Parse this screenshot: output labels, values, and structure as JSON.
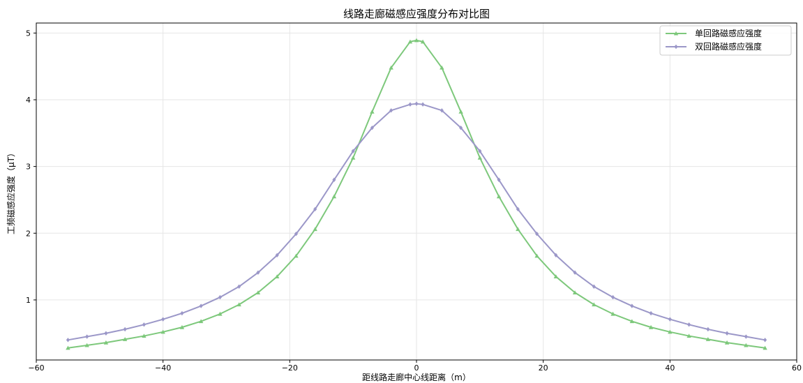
{
  "chart_data": {
    "type": "line",
    "title": "线路走廊磁感应强度分布对比图",
    "xlabel": "距线路走廊中心线距离（m）",
    "ylabel": "工频磁感应强度（μT）",
    "xlim": [
      -60,
      60
    ],
    "ylim": [
      0.1,
      5.15
    ],
    "xticks": [
      -60,
      -40,
      -20,
      0,
      20,
      40,
      60
    ],
    "yticks": [
      1,
      2,
      3,
      4,
      5
    ],
    "grid": true,
    "legend_position": "top-right",
    "series": [
      {
        "name": "单回路磁感应强度",
        "color": "#7dc87b",
        "marker": "triangle",
        "x": [
          -55,
          -52,
          -49,
          -46,
          -43,
          -40,
          -37,
          -34,
          -31,
          -28,
          -25,
          -22,
          -19,
          -16,
          -13,
          -10,
          -7,
          -4,
          -1,
          0,
          1,
          4,
          7,
          10,
          13,
          16,
          19,
          22,
          25,
          28,
          31,
          34,
          37,
          40,
          43,
          46,
          49,
          52,
          55
        ],
        "y": [
          0.28,
          0.32,
          0.36,
          0.41,
          0.46,
          0.52,
          0.59,
          0.68,
          0.79,
          0.93,
          1.11,
          1.35,
          1.66,
          2.06,
          2.55,
          3.13,
          3.82,
          4.48,
          4.87,
          4.89,
          4.87,
          4.48,
          3.82,
          3.13,
          2.55,
          2.06,
          1.66,
          1.35,
          1.11,
          0.93,
          0.79,
          0.68,
          0.59,
          0.52,
          0.46,
          0.41,
          0.36,
          0.32,
          0.28
        ]
      },
      {
        "name": "双回路磁感应强度",
        "color": "#9b97c8",
        "marker": "diamond",
        "x": [
          -55,
          -52,
          -49,
          -46,
          -43,
          -40,
          -37,
          -34,
          -31,
          -28,
          -25,
          -22,
          -19,
          -16,
          -13,
          -10,
          -7,
          -4,
          -1,
          0,
          1,
          4,
          7,
          10,
          13,
          16,
          19,
          22,
          25,
          28,
          31,
          34,
          37,
          40,
          43,
          46,
          49,
          52,
          55
        ],
        "y": [
          0.4,
          0.45,
          0.5,
          0.56,
          0.63,
          0.71,
          0.8,
          0.91,
          1.04,
          1.2,
          1.41,
          1.67,
          1.99,
          2.36,
          2.8,
          3.23,
          3.58,
          3.84,
          3.93,
          3.94,
          3.93,
          3.84,
          3.58,
          3.23,
          2.8,
          2.36,
          1.99,
          1.67,
          1.41,
          1.2,
          1.04,
          0.91,
          0.8,
          0.71,
          0.63,
          0.56,
          0.5,
          0.45,
          0.4
        ]
      }
    ]
  }
}
